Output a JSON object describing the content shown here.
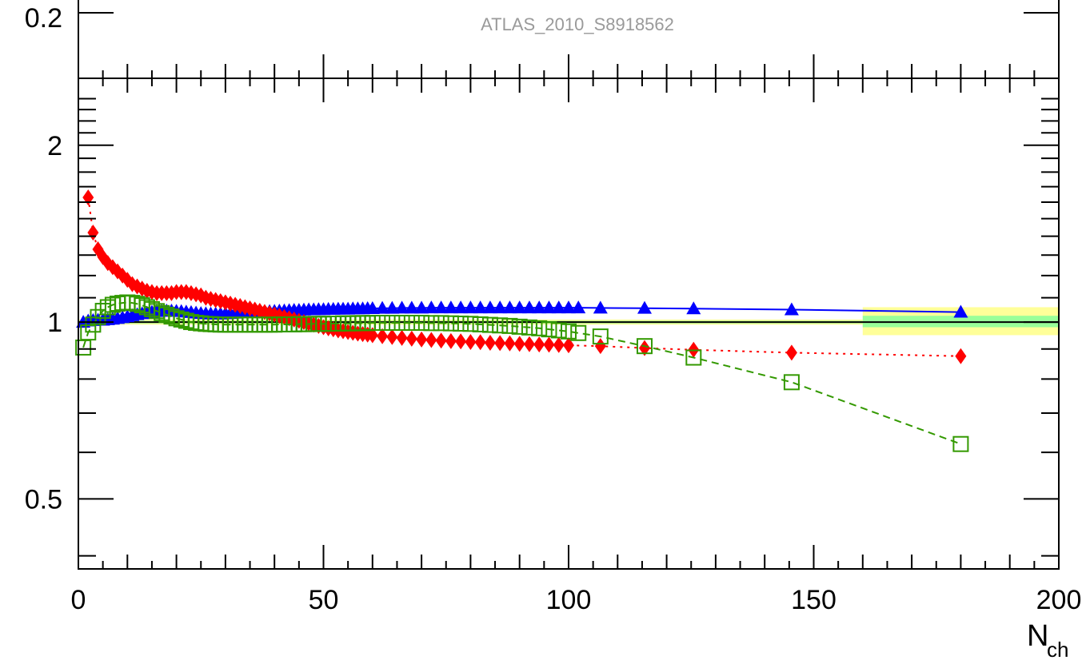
{
  "chart_data": {
    "type": "scatter",
    "title": "ATLAS_2010_S8918562",
    "upper_panel": {
      "y_tick_labels": [
        {
          "value": 0.2,
          "label": "0.2"
        }
      ]
    },
    "xlabel": "N",
    "xlabel_subscript": "ch",
    "ylabel": "",
    "xlim": [
      0,
      200
    ],
    "ylim": [
      0.38,
      2.6
    ],
    "y_scale": "log",
    "x_tick_labels": [
      {
        "value": 0,
        "label": "0"
      },
      {
        "value": 50,
        "label": "50"
      },
      {
        "value": 100,
        "label": "100"
      },
      {
        "value": 150,
        "label": "150"
      },
      {
        "value": 200,
        "label": "200"
      }
    ],
    "y_tick_labels": [
      {
        "value": 0.5,
        "label": "0.5"
      },
      {
        "value": 1,
        "label": "1"
      },
      {
        "value": 2,
        "label": "2"
      }
    ],
    "reference_line": 1,
    "uncertainty_bands": [
      {
        "x_from": 0,
        "x_to": 160,
        "outer": [
          0.99,
          1.01
        ],
        "inner": [
          0.995,
          1.005
        ]
      },
      {
        "x_from": 160,
        "x_to": 200,
        "outer": [
          0.95,
          1.06
        ],
        "inner": [
          0.98,
          1.025
        ]
      }
    ],
    "band_colors": {
      "outer": "#ffff99",
      "inner": "#99ff99"
    },
    "series": [
      {
        "color": "#0000ff",
        "marker": "filled-triangle",
        "line_style": "solid",
        "x": [
          1,
          2,
          3,
          4,
          5,
          6,
          7,
          8,
          9,
          10,
          11,
          12,
          13,
          14,
          15,
          16,
          17,
          18,
          19,
          20,
          21,
          22,
          23,
          24,
          25,
          26,
          27,
          28,
          29,
          30,
          31,
          32,
          33,
          34,
          35,
          36,
          37,
          38,
          39,
          40,
          41,
          42,
          43,
          44,
          45,
          46,
          47,
          48,
          49,
          50,
          51,
          52,
          53,
          54,
          55,
          56,
          57,
          58,
          59,
          60,
          62,
          64,
          66,
          68,
          70,
          72,
          74,
          76,
          78,
          80,
          82,
          84,
          86,
          88,
          90,
          92,
          94,
          96,
          98,
          100,
          102,
          106.5,
          115.5,
          125.5,
          145.5,
          180
        ],
        "y": [
          1.0,
          1.005,
          1.007,
          1.008,
          1.008,
          1.01,
          1.012,
          1.015,
          1.018,
          1.022,
          1.026,
          1.03,
          1.034,
          1.037,
          1.04,
          1.043,
          1.044,
          1.045,
          1.045,
          1.044,
          1.043,
          1.041,
          1.039,
          1.037,
          1.035,
          1.034,
          1.033,
          1.033,
          1.033,
          1.034,
          1.035,
          1.036,
          1.037,
          1.038,
          1.039,
          1.04,
          1.041,
          1.042,
          1.043,
          1.044,
          1.045,
          1.046,
          1.047,
          1.048,
          1.048,
          1.049,
          1.05,
          1.05,
          1.051,
          1.051,
          1.052,
          1.052,
          1.053,
          1.053,
          1.053,
          1.054,
          1.054,
          1.054,
          1.055,
          1.055,
          1.056,
          1.056,
          1.057,
          1.057,
          1.057,
          1.058,
          1.058,
          1.058,
          1.058,
          1.058,
          1.058,
          1.058,
          1.058,
          1.058,
          1.058,
          1.058,
          1.058,
          1.058,
          1.058,
          1.058,
          1.058,
          1.057,
          1.056,
          1.054,
          1.05,
          1.04
        ]
      },
      {
        "color": "#ff0000",
        "marker": "filled-diamond",
        "line_style": "dotted",
        "x": [
          2,
          3,
          4,
          5,
          6,
          7,
          8,
          9,
          10,
          11,
          12,
          13,
          14,
          15,
          16,
          17,
          18,
          19,
          20,
          21,
          22,
          23,
          24,
          25,
          26,
          27,
          28,
          29,
          30,
          31,
          32,
          33,
          34,
          35,
          36,
          37,
          38,
          39,
          40,
          41,
          42,
          43,
          44,
          45,
          46,
          47,
          48,
          49,
          50,
          51,
          52,
          53,
          54,
          55,
          56,
          57,
          58,
          59,
          60,
          62,
          64,
          66,
          68,
          70,
          72,
          74,
          76,
          78,
          80,
          82,
          84,
          86,
          88,
          90,
          92,
          94,
          96,
          98,
          100,
          106.5,
          115.5,
          125.5,
          145.5,
          180
        ],
        "y": [
          1.63,
          1.42,
          1.33,
          1.29,
          1.26,
          1.24,
          1.22,
          1.2,
          1.18,
          1.16,
          1.15,
          1.14,
          1.13,
          1.125,
          1.12,
          1.12,
          1.12,
          1.12,
          1.125,
          1.125,
          1.125,
          1.12,
          1.115,
          1.11,
          1.1,
          1.095,
          1.09,
          1.085,
          1.08,
          1.075,
          1.07,
          1.065,
          1.06,
          1.055,
          1.05,
          1.045,
          1.04,
          1.035,
          1.03,
          1.025,
          1.02,
          1.015,
          1.01,
          1.005,
          1.0,
          0.995,
          0.99,
          0.985,
          0.98,
          0.976,
          0.972,
          0.968,
          0.965,
          0.962,
          0.959,
          0.956,
          0.954,
          0.952,
          0.95,
          0.946,
          0.943,
          0.94,
          0.937,
          0.934,
          0.932,
          0.93,
          0.928,
          0.927,
          0.925,
          0.924,
          0.922,
          0.921,
          0.92,
          0.918,
          0.917,
          0.916,
          0.915,
          0.914,
          0.913,
          0.91,
          0.903,
          0.897,
          0.887,
          0.875
        ]
      },
      {
        "color": "#339900",
        "marker": "open-square",
        "line_style": "dashed",
        "x": [
          1,
          2,
          3,
          4,
          5,
          6,
          7,
          8,
          9,
          10,
          11,
          12,
          13,
          14,
          15,
          16,
          17,
          18,
          19,
          20,
          21,
          22,
          23,
          24,
          25,
          26,
          27,
          28,
          29,
          30,
          31,
          32,
          33,
          34,
          35,
          36,
          37,
          38,
          39,
          40,
          41,
          42,
          43,
          44,
          45,
          46,
          47,
          48,
          49,
          50,
          51,
          52,
          53,
          54,
          55,
          56,
          57,
          58,
          59,
          60,
          62,
          64,
          66,
          68,
          70,
          72,
          74,
          76,
          78,
          80,
          82,
          84,
          86,
          88,
          90,
          92,
          94,
          96,
          98,
          100,
          102,
          106.5,
          115.5,
          125.5,
          145.5,
          180
        ],
        "y": [
          0.905,
          0.96,
          0.99,
          1.02,
          1.045,
          1.06,
          1.07,
          1.075,
          1.078,
          1.08,
          1.078,
          1.074,
          1.068,
          1.06,
          1.052,
          1.044,
          1.036,
          1.029,
          1.022,
          1.015,
          1.01,
          1.005,
          1.0,
          0.997,
          0.995,
          0.993,
          0.992,
          0.991,
          0.99,
          0.99,
          0.99,
          0.99,
          0.99,
          0.99,
          0.99,
          0.99,
          0.99,
          0.99,
          0.99,
          0.99,
          0.991,
          0.991,
          0.991,
          0.991,
          0.992,
          0.992,
          0.992,
          0.993,
          0.993,
          0.993,
          0.994,
          0.994,
          0.994,
          0.995,
          0.995,
          0.995,
          0.996,
          0.996,
          0.996,
          0.997,
          0.997,
          0.997,
          0.997,
          0.997,
          0.997,
          0.996,
          0.996,
          0.995,
          0.994,
          0.993,
          0.991,
          0.989,
          0.987,
          0.985,
          0.982,
          0.979,
          0.976,
          0.972,
          0.968,
          0.964,
          0.958,
          0.945,
          0.91,
          0.87,
          0.79,
          0.62
        ]
      }
    ]
  }
}
